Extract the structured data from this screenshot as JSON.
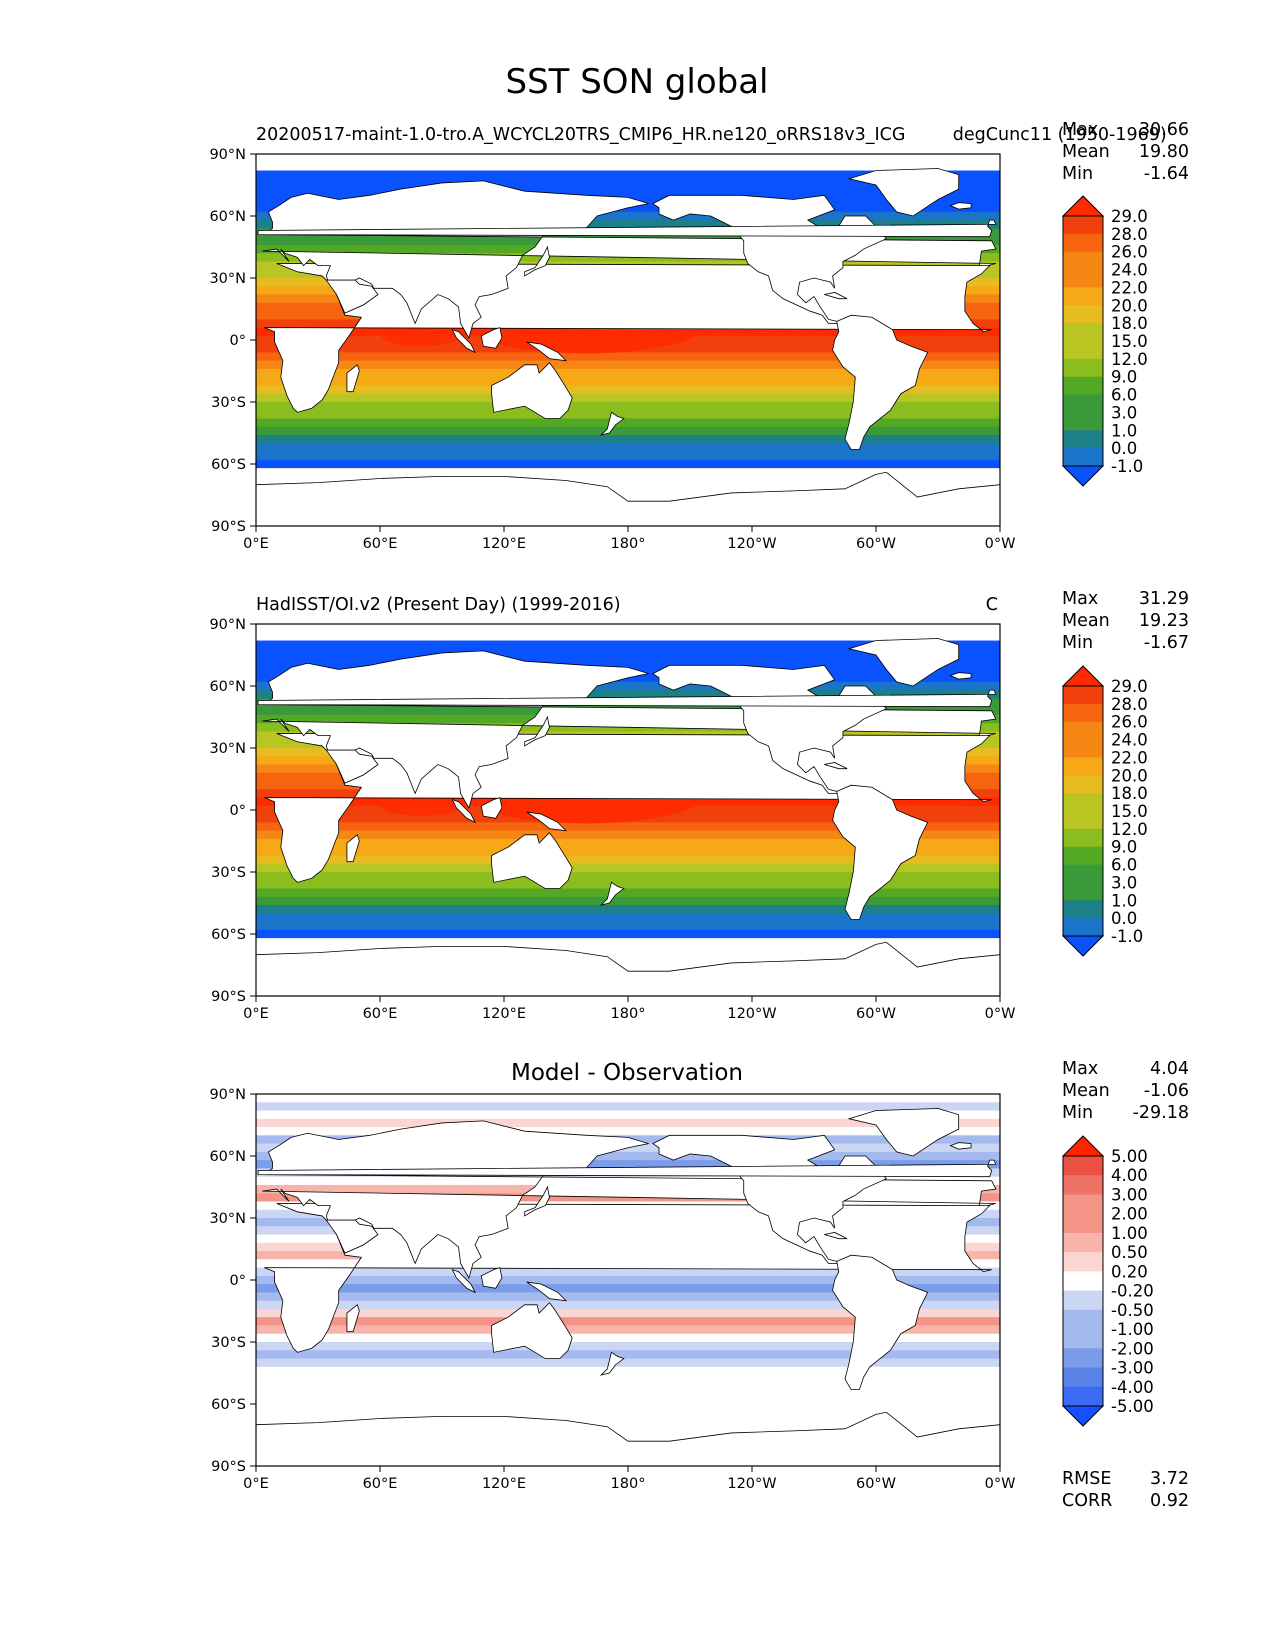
{
  "figure": {
    "title": "SST SON global"
  },
  "axes": {
    "lat_ticks": [
      "90°N",
      "60°N",
      "30°N",
      "0°",
      "30°S",
      "60°S",
      "90°S"
    ],
    "lon_ticks": [
      "0°E",
      "60°E",
      "120°E",
      "180°",
      "120°W",
      "60°W",
      "0°W"
    ]
  },
  "colors": {
    "sst_scale": [
      "#0b52ff",
      "#1a74c9",
      "#1d7f88",
      "#3a9a3a",
      "#53a824",
      "#8bbd1f",
      "#b9c523",
      "#e6bc20",
      "#f6a817",
      "#f68714",
      "#f6640f",
      "#f2400c",
      "#ff2a00"
    ],
    "diff_scale": [
      "#1450ff",
      "#3b6af5",
      "#5a83ea",
      "#7b9ce8",
      "#a4b9ee",
      "#cbd6f5",
      "#ffffff",
      "#fbd5d2",
      "#f8b4ab",
      "#f39487",
      "#ee7265",
      "#ec5040",
      "#ff2400"
    ],
    "land": "#ffffff",
    "coast": "#000000"
  },
  "chart_data": [
    {
      "type": "heatmap",
      "title_left": "20200517-maint-1.0-tro.A_WCYCL20TRS_CMIP6_HR.ne120_oRRS18v3_ICG",
      "title_right": "degC",
      "title_extra": "unc11 (1950-1969)",
      "stats": {
        "labels": [
          "Max",
          "Mean",
          "Min"
        ],
        "values": [
          "30.66",
          "19.80",
          "-1.64"
        ]
      },
      "colorbar_levels": [
        "-1.0",
        "0.0",
        "1.0",
        "3.0",
        "6.0",
        "9.0",
        "12.0",
        "15.0",
        "18.0",
        "20.0",
        "22.0",
        "24.0",
        "26.0",
        "28.0",
        "29.0"
      ],
      "field_stats": {
        "max": 30.66,
        "mean": 19.8,
        "min": -1.64
      },
      "xlim": [
        0,
        360
      ],
      "ylim": [
        -90,
        90
      ]
    },
    {
      "type": "heatmap",
      "title_left": "HadISST/OI.v2 (Present Day) (1999-2016)",
      "title_right": "C",
      "stats": {
        "labels": [
          "Max",
          "Mean",
          "Min"
        ],
        "values": [
          "31.29",
          "19.23",
          "-1.67"
        ]
      },
      "colorbar_levels": [
        "-1.0",
        "0.0",
        "1.0",
        "3.0",
        "6.0",
        "9.0",
        "12.0",
        "15.0",
        "18.0",
        "20.0",
        "22.0",
        "24.0",
        "26.0",
        "28.0",
        "29.0"
      ],
      "field_stats": {
        "max": 31.29,
        "mean": 19.23,
        "min": -1.67
      },
      "xlim": [
        0,
        360
      ],
      "ylim": [
        -90,
        90
      ]
    },
    {
      "type": "heatmap",
      "title_center": "Model - Observation",
      "stats": {
        "labels": [
          "Max",
          "Mean",
          "Min"
        ],
        "values": [
          "4.04",
          "-1.06",
          "-29.18"
        ]
      },
      "colorbar_levels": [
        "-5.00",
        "-4.00",
        "-3.00",
        "-2.00",
        "-1.00",
        "-0.50",
        "-0.20",
        "0.20",
        "0.50",
        "1.00",
        "2.00",
        "3.00",
        "4.00",
        "5.00"
      ],
      "field_stats": {
        "max": 4.04,
        "mean": -1.06,
        "min": -29.18
      },
      "metrics": {
        "labels": [
          "RMSE",
          "CORR"
        ],
        "values": [
          "3.72",
          "0.92"
        ]
      },
      "xlim": [
        0,
        360
      ],
      "ylim": [
        -90,
        90
      ]
    }
  ]
}
